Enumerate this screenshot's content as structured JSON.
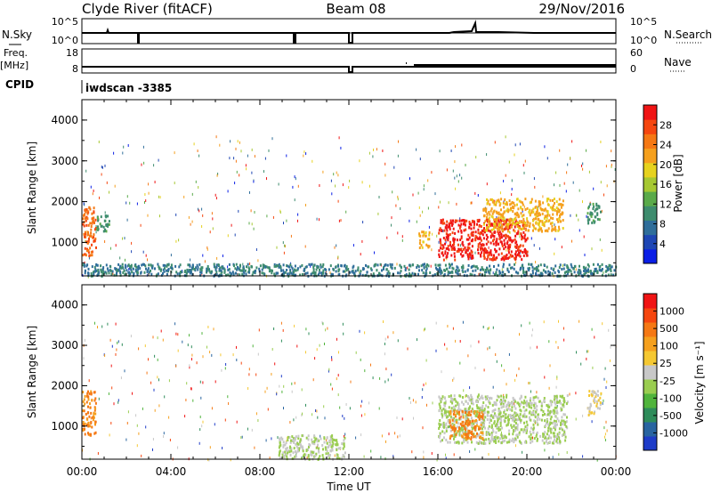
{
  "header": {
    "station": "Clyde River (fitACF)",
    "beam": "Beam 08",
    "date": "29/Nov/2016"
  },
  "top_panels": {
    "nsky_label": "N.Sky",
    "nsky_ticks": [
      "10^5",
      "10^0"
    ],
    "nsearch_label": "N.Search",
    "nsearch_ticks": [
      "10^5",
      "10^0"
    ],
    "freq_label": "Freq.",
    "freq_unit": "[MHz]",
    "freq_ticks": [
      "18",
      "8"
    ],
    "nave_label": "Nave",
    "nave_ticks": [
      "60",
      "0"
    ],
    "cpid_label": "CPID",
    "cpid_value": "iwdscan -3385"
  },
  "chart_data": [
    {
      "type": "heatmap",
      "name": "power",
      "ylabel": "Slant Range [km]",
      "yticks": [
        "4000",
        "3000",
        "2000",
        "1000"
      ],
      "ylim": [
        180,
        4500
      ],
      "xlim": [
        0,
        24
      ],
      "colorbar": {
        "label": "Power [dB]",
        "ticks": [
          "28",
          "24",
          "20",
          "16",
          "12",
          "8",
          "4"
        ],
        "range": [
          0,
          30
        ],
        "colors": [
          "#0a1ee6",
          "#1e46b4",
          "#2f6e9a",
          "#3e8c6e",
          "#5aaa4a",
          "#a6c832",
          "#e6d21e",
          "#f5a01e",
          "#f57814",
          "#f5460f",
          "#f01414"
        ]
      },
      "features": [
        {
          "t0": 0.0,
          "t1": 0.6,
          "r0": 700,
          "r1": 1900,
          "level": 24
        },
        {
          "t0": 0.6,
          "t1": 1.2,
          "r0": 1300,
          "r1": 1700,
          "level": 10
        },
        {
          "t0": 15.1,
          "t1": 15.6,
          "r0": 900,
          "r1": 1300,
          "level": 20
        },
        {
          "t0": 16.0,
          "t1": 20.0,
          "r0": 600,
          "r1": 1600,
          "level": 28
        },
        {
          "t0": 18.0,
          "t1": 21.6,
          "r0": 1300,
          "r1": 2100,
          "level": 20
        },
        {
          "t0": 22.7,
          "t1": 23.3,
          "r0": 1500,
          "r1": 2000,
          "level": 10
        },
        {
          "t0": 0.0,
          "t1": 24.0,
          "r0": 200,
          "r1": 500,
          "level": 8
        }
      ]
    },
    {
      "type": "heatmap",
      "name": "velocity",
      "ylabel": "Slant Range [km]",
      "yticks": [
        "4000",
        "3000",
        "2000",
        "1000"
      ],
      "ylim": [
        180,
        4500
      ],
      "xlim": [
        0,
        24
      ],
      "xticks": [
        "00:00",
        "04:00",
        "08:00",
        "12:00",
        "16:00",
        "20:00",
        "00:00"
      ],
      "xlabel": "Time UT",
      "colorbar": {
        "label": "Velocity [m s⁻¹]",
        "ticks": [
          "1000",
          "500",
          "100",
          "25",
          "-25",
          "-100",
          "-500",
          "-1000"
        ],
        "range": [
          -1000,
          1000
        ],
        "colors": [
          "#1e3cc8",
          "#2864a0",
          "#2e8c5a",
          "#50b43c",
          "#9acd50",
          "#c8c8c8",
          "#f5c832",
          "#f5a01e",
          "#f57814",
          "#f5460f",
          "#f01414"
        ]
      },
      "features": [
        {
          "t0": 0.0,
          "t1": 0.6,
          "r0": 800,
          "r1": 1900,
          "level": 500
        },
        {
          "t0": 8.8,
          "t1": 11.8,
          "r0": 200,
          "r1": 800,
          "level": -100
        },
        {
          "t0": 16.0,
          "t1": 21.8,
          "r0": 600,
          "r1": 1800,
          "level": -100
        },
        {
          "t0": 16.5,
          "t1": 18.0,
          "r0": 700,
          "r1": 1400,
          "level": 500
        },
        {
          "t0": 22.7,
          "t1": 23.3,
          "r0": 1300,
          "r1": 1900,
          "level": 100
        }
      ]
    }
  ]
}
